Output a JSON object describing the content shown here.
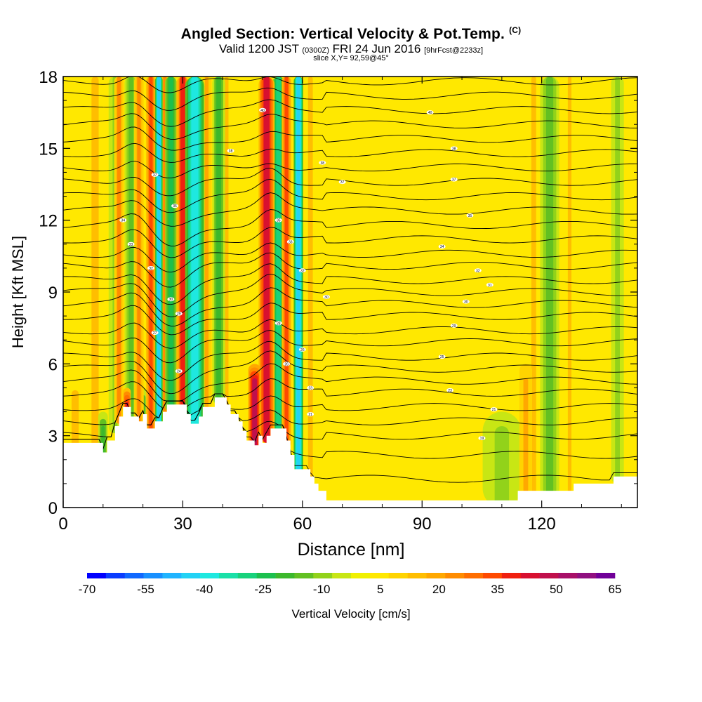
{
  "title": {
    "main": "Angled Section: Vertical Velocity & Pot.Temp.",
    "main_suffix": "(C)",
    "valid_prefix": "Valid 1200 JST",
    "valid_utc": "(0300Z)",
    "valid_date": "FRI 24 Jun 2016",
    "valid_fcst": "[9hrFcst@2233z]",
    "slice": "slice X,Y= 92,59@45°"
  },
  "chart_data": {
    "type": "heatmap",
    "xlabel": "Distance [nm]",
    "ylabel": "Height [Kft MSL]",
    "xlim": [
      0,
      144
    ],
    "ylim": [
      0,
      18
    ],
    "x_ticks": [
      0,
      30,
      60,
      90,
      120
    ],
    "y_ticks": [
      0,
      3,
      6,
      9,
      12,
      15,
      18
    ],
    "background_value": 5,
    "colorbar": {
      "label": "Vertical Velocity [cm/s]",
      "tick_labels": [
        -70,
        -55,
        -40,
        -25,
        -10,
        5,
        20,
        35,
        50,
        65
      ],
      "levels": [
        -70,
        -65,
        -60,
        -55,
        -50,
        -45,
        -40,
        -35,
        -30,
        -25,
        -20,
        -15,
        -10,
        -5,
        0,
        5,
        10,
        15,
        20,
        25,
        30,
        35,
        40,
        45,
        50,
        55,
        60,
        65
      ],
      "colors": [
        "#0000ff",
        "#0a3cff",
        "#1068ff",
        "#1890ff",
        "#20b4ff",
        "#22d2f5",
        "#1ee8e0",
        "#1ae0a8",
        "#18d27c",
        "#1cc04e",
        "#3cb82c",
        "#62c022",
        "#92d21a",
        "#c8e614",
        "#f0f000",
        "#ffe800",
        "#ffd400",
        "#ffbe00",
        "#ffa800",
        "#ff8c00",
        "#ff6e00",
        "#ff4a00",
        "#f02010",
        "#d81030",
        "#c0104c",
        "#a81068",
        "#901080",
        "#700098"
      ]
    },
    "velocity_features": [
      {
        "x": 3,
        "ztop": 5.5,
        "w": 3,
        "value": 15
      },
      {
        "x": 8,
        "ztop": 18,
        "w": 3,
        "value": 15
      },
      {
        "x": 10,
        "ztop": 4,
        "w": 1.5,
        "value": -20
      },
      {
        "x": 13,
        "ztop": 18,
        "w": 2,
        "value": -10
      },
      {
        "x": 14,
        "ztop": 18,
        "w": 1.5,
        "value": 25
      },
      {
        "x": 16,
        "ztop": 5,
        "w": 1.2,
        "value": 45
      },
      {
        "x": 17,
        "ztop": 18,
        "w": 2,
        "value": -15
      },
      {
        "x": 19,
        "ztop": 18,
        "w": 1.5,
        "value": 25
      },
      {
        "x": 20,
        "ztop": 5,
        "w": 1.2,
        "value": -20
      },
      {
        "x": 22,
        "ztop": 18,
        "w": 1.5,
        "value": 35
      },
      {
        "x": 24,
        "ztop": 18,
        "w": 1.2,
        "value": -45
      },
      {
        "x": 25.5,
        "ztop": 18,
        "w": 1.5,
        "value": 25
      },
      {
        "x": 27,
        "ztop": 18,
        "w": 1.8,
        "value": -25
      },
      {
        "x": 30,
        "ztop": 18,
        "w": 2,
        "value": 40
      },
      {
        "x": 33,
        "ztop": 18,
        "w": 3,
        "value": -40
      },
      {
        "x": 36,
        "ztop": 18,
        "w": 1.5,
        "value": 20
      },
      {
        "x": 39,
        "ztop": 18,
        "w": 2,
        "value": -20
      },
      {
        "x": 41,
        "ztop": 18,
        "w": 1.5,
        "value": 15
      },
      {
        "x": 48,
        "ztop": 6,
        "w": 2,
        "value": 50
      },
      {
        "x": 51,
        "ztop": 18,
        "w": 2.5,
        "value": 45
      },
      {
        "x": 54,
        "ztop": 18,
        "w": 2,
        "value": -30
      },
      {
        "x": 56,
        "ztop": 18,
        "w": 1.5,
        "value": 35
      },
      {
        "x": 59,
        "ztop": 18,
        "w": 1.5,
        "value": -45
      },
      {
        "x": 62,
        "ztop": 18,
        "w": 2,
        "value": 15
      },
      {
        "x": 110,
        "ztop": 4,
        "w": 6,
        "value": -10
      },
      {
        "x": 116,
        "ztop": 6,
        "w": 2,
        "value": 20
      },
      {
        "x": 118,
        "ztop": 18,
        "w": 2,
        "value": 15
      },
      {
        "x": 122,
        "ztop": 18,
        "w": 3,
        "value": -15
      },
      {
        "x": 127,
        "ztop": 18,
        "w": 1.5,
        "value": 15
      },
      {
        "x": 139,
        "ztop": 18,
        "w": 2,
        "value": -10
      }
    ],
    "terrain": [
      [
        0,
        2.7
      ],
      [
        6,
        2.7
      ],
      [
        10,
        2.7
      ],
      [
        10,
        2.3
      ],
      [
        11,
        2.3
      ],
      [
        11,
        2.8
      ],
      [
        13,
        2.8
      ],
      [
        13,
        3.4
      ],
      [
        14,
        3.4
      ],
      [
        14,
        3.8
      ],
      [
        15,
        3.8
      ],
      [
        15,
        4.2
      ],
      [
        17,
        4.2
      ],
      [
        17,
        3.8
      ],
      [
        19,
        3.8
      ],
      [
        19,
        3.6
      ],
      [
        20,
        3.6
      ],
      [
        20,
        3.9
      ],
      [
        21,
        3.9
      ],
      [
        21,
        3.3
      ],
      [
        23,
        3.3
      ],
      [
        23,
        3.6
      ],
      [
        25,
        3.6
      ],
      [
        25,
        4.0
      ],
      [
        26,
        4.0
      ],
      [
        26,
        4.3
      ],
      [
        31,
        4.3
      ],
      [
        31,
        3.9
      ],
      [
        32,
        3.9
      ],
      [
        32,
        3.5
      ],
      [
        34,
        3.5
      ],
      [
        34,
        3.8
      ],
      [
        35,
        3.8
      ],
      [
        35,
        4.2
      ],
      [
        38,
        4.2
      ],
      [
        38,
        4.6
      ],
      [
        41,
        4.6
      ],
      [
        41,
        4.3
      ],
      [
        42,
        4.3
      ],
      [
        42,
        3.9
      ],
      [
        44,
        3.9
      ],
      [
        44,
        3.6
      ],
      [
        45,
        3.6
      ],
      [
        45,
        3.2
      ],
      [
        46,
        3.2
      ],
      [
        46,
        2.8
      ],
      [
        48,
        2.8
      ],
      [
        48,
        2.6
      ],
      [
        49,
        2.6
      ],
      [
        49,
        3.0
      ],
      [
        50,
        3.0
      ],
      [
        50,
        2.7
      ],
      [
        51,
        2.7
      ],
      [
        51,
        3.0
      ],
      [
        52,
        3.0
      ],
      [
        52,
        3.3
      ],
      [
        56,
        3.3
      ],
      [
        56,
        2.8
      ],
      [
        57,
        2.8
      ],
      [
        57,
        2.2
      ],
      [
        58,
        2.2
      ],
      [
        58,
        1.6
      ],
      [
        62,
        1.6
      ],
      [
        62,
        1.3
      ],
      [
        63,
        1.3
      ],
      [
        63,
        1.0
      ],
      [
        64,
        1.0
      ],
      [
        64,
        0.7
      ],
      [
        66,
        0.7
      ],
      [
        66,
        0.3
      ],
      [
        114,
        0.3
      ],
      [
        114,
        0.7
      ],
      [
        128,
        0.7
      ],
      [
        128,
        1.0
      ],
      [
        138,
        1.0
      ],
      [
        138,
        1.3
      ],
      [
        144,
        1.3
      ]
    ],
    "theta_contours": {
      "base_levels": [
        1.2,
        2.2,
        3.0,
        3.6,
        4.2,
        4.8,
        5.3,
        5.8,
        6.3,
        6.9,
        7.4,
        8.0,
        8.5,
        9.0,
        9.5,
        10.1,
        10.6,
        11.2,
        11.8,
        12.4,
        13.0,
        13.6,
        14.2,
        14.8,
        15.4,
        16.0,
        16.6,
        17.2,
        17.8
      ],
      "labels": [
        {
          "x": 15,
          "z": 12,
          "text": "34"
        },
        {
          "x": 17,
          "z": 11,
          "text": "33"
        },
        {
          "x": 22,
          "z": 10,
          "text": "32"
        },
        {
          "x": 23,
          "z": 13.9,
          "text": "37"
        },
        {
          "x": 28,
          "z": 12.6,
          "text": "36"
        },
        {
          "x": 27,
          "z": 8.7,
          "text": "30"
        },
        {
          "x": 29,
          "z": 8.1,
          "text": "29"
        },
        {
          "x": 23,
          "z": 7.3,
          "text": "27"
        },
        {
          "x": 29,
          "z": 5.7,
          "text": "24"
        },
        {
          "x": 42,
          "z": 14.9,
          "text": "38"
        },
        {
          "x": 50,
          "z": 16.6,
          "text": "40"
        },
        {
          "x": 54,
          "z": 12,
          "text": "35"
        },
        {
          "x": 57,
          "z": 11.1,
          "text": "33"
        },
        {
          "x": 60,
          "z": 9.9,
          "text": "32"
        },
        {
          "x": 54,
          "z": 7.7,
          "text": "28"
        },
        {
          "x": 56,
          "z": 6.0,
          "text": "26"
        },
        {
          "x": 60,
          "z": 6.6,
          "text": "26"
        },
        {
          "x": 62,
          "z": 5.0,
          "text": "23"
        },
        {
          "x": 62,
          "z": 3.9,
          "text": "21"
        },
        {
          "x": 65,
          "z": 14.4,
          "text": "38"
        },
        {
          "x": 70,
          "z": 13.6,
          "text": "37"
        },
        {
          "x": 66,
          "z": 8.8,
          "text": "30"
        },
        {
          "x": 92,
          "z": 16.5,
          "text": "40"
        },
        {
          "x": 98,
          "z": 15.0,
          "text": "38"
        },
        {
          "x": 98,
          "z": 13.7,
          "text": "37"
        },
        {
          "x": 102,
          "z": 12.2,
          "text": "35"
        },
        {
          "x": 95,
          "z": 10.9,
          "text": "34"
        },
        {
          "x": 104,
          "z": 9.9,
          "text": "32"
        },
        {
          "x": 107,
          "z": 9.3,
          "text": "31"
        },
        {
          "x": 101,
          "z": 8.6,
          "text": "30"
        },
        {
          "x": 98,
          "z": 7.6,
          "text": "29"
        },
        {
          "x": 95,
          "z": 6.3,
          "text": "25"
        },
        {
          "x": 97,
          "z": 4.9,
          "text": "23"
        },
        {
          "x": 108,
          "z": 4.1,
          "text": "21"
        },
        {
          "x": 105,
          "z": 2.9,
          "text": "19"
        }
      ]
    }
  }
}
